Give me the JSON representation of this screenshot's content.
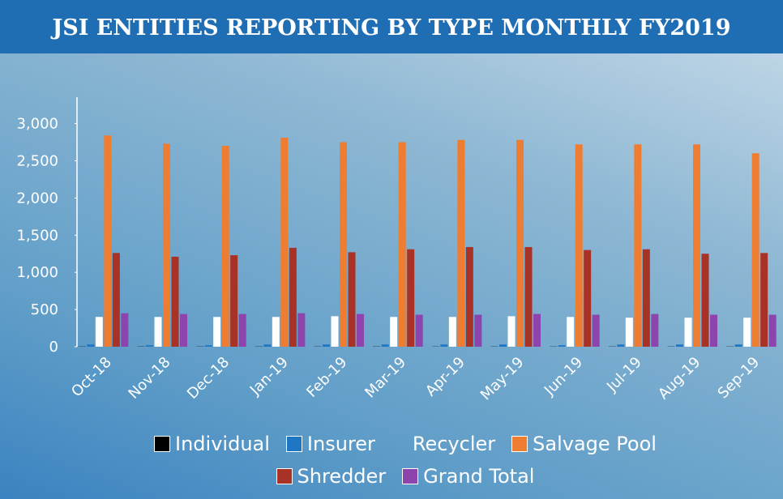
{
  "chart_data": {
    "type": "bar",
    "title": "JSI ENTITIES REPORTING BY TYPE MONTHLY FY2019",
    "categories": [
      "Oct-18",
      "Nov-18",
      "Dec-18",
      "Jan-19",
      "Feb-19",
      "Mar-19",
      "Apr-19",
      "May-19",
      "Jun-19",
      "Jul-19",
      "Aug-19",
      "Sep-19"
    ],
    "series": [
      {
        "name": "Individual",
        "color": "#000000",
        "values": [
          3,
          3,
          3,
          3,
          3,
          3,
          3,
          3,
          3,
          3,
          3,
          3
        ]
      },
      {
        "name": "Insurer",
        "color": "#1f77c4",
        "values": [
          30,
          20,
          20,
          30,
          30,
          30,
          30,
          30,
          20,
          30,
          30,
          30
        ]
      },
      {
        "name": "Recycler",
        "color": "#ffffff",
        "values": [
          400,
          400,
          400,
          400,
          410,
          400,
          400,
          410,
          400,
          390,
          390,
          390
        ]
      },
      {
        "name": "Salvage Pool",
        "color": "#ee7d31",
        "values": [
          2840,
          2730,
          2700,
          2810,
          2750,
          2750,
          2780,
          2780,
          2720,
          2720,
          2720,
          2600
        ]
      },
      {
        "name": "Shredder",
        "color": "#a93226",
        "values": [
          1260,
          1210,
          1230,
          1330,
          1270,
          1310,
          1340,
          1340,
          1300,
          1310,
          1250,
          1260
        ]
      },
      {
        "name": "Grand Total",
        "color": "#8e44ad",
        "values": [
          450,
          440,
          440,
          450,
          440,
          430,
          430,
          440,
          430,
          440,
          430,
          430
        ]
      }
    ],
    "ylim": [
      0,
      3300
    ],
    "yticks": [
      0,
      500,
      {
        "value": 1000,
        "label": "1,000"
      },
      {
        "value": 1500,
        "label": "1,500"
      },
      {
        "value": 2000,
        "label": "2,000"
      },
      {
        "value": 2500,
        "label": "2,500"
      },
      {
        "value": 3000,
        "label": "3,000"
      }
    ],
    "grid": false,
    "legend": "bottom"
  }
}
